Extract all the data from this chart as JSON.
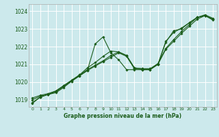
{
  "background_color": "#cce9ec",
  "grid_color": "#ffffff",
  "line_color": "#1a5c1a",
  "marker_color": "#1a5c1a",
  "xlabel": "Graphe pression niveau de la mer (hPa)",
  "xlabel_color": "#1a5c1a",
  "ylabel_ticks": [
    1019,
    1020,
    1021,
    1022,
    1023,
    1024
  ],
  "xticks": [
    0,
    1,
    2,
    3,
    4,
    5,
    6,
    7,
    8,
    9,
    10,
    11,
    12,
    13,
    14,
    15,
    16,
    17,
    18,
    19,
    20,
    21,
    22,
    23
  ],
  "xlim": [
    -0.5,
    23.5
  ],
  "ylim": [
    1018.6,
    1024.4
  ],
  "series": [
    [
      1018.8,
      1019.15,
      1019.3,
      1019.45,
      1019.75,
      1020.05,
      1020.35,
      1020.65,
      1020.9,
      1021.15,
      1021.4,
      1021.65,
      1021.45,
      1020.75,
      1020.7,
      1020.7,
      1021.0,
      1021.85,
      1022.3,
      1022.75,
      1023.15,
      1023.55,
      1023.75,
      1023.55
    ],
    [
      1019.1,
      1019.25,
      1019.35,
      1019.5,
      1019.8,
      1020.1,
      1020.4,
      1020.7,
      1020.95,
      1021.2,
      1021.5,
      1021.7,
      1021.5,
      1020.8,
      1020.75,
      1020.75,
      1021.05,
      1021.9,
      1022.4,
      1022.85,
      1023.25,
      1023.65,
      1023.8,
      1023.6
    ],
    [
      1019.0,
      1019.2,
      1019.3,
      1019.5,
      1019.8,
      1020.1,
      1020.4,
      1020.8,
      1021.1,
      1021.45,
      1021.75,
      1021.7,
      1021.5,
      1020.8,
      1020.75,
      1020.75,
      1021.0,
      1022.3,
      1022.8,
      1023.05,
      1023.35,
      1023.65,
      1023.75,
      1023.55
    ],
    [
      1018.85,
      1019.15,
      1019.3,
      1019.4,
      1019.7,
      1020.05,
      1020.35,
      1020.65,
      1022.15,
      1022.55,
      1021.65,
      1021.25,
      1020.7,
      1020.7,
      1020.7,
      1020.7,
      1021.0,
      1022.25,
      1022.9,
      1023.0,
      1023.35,
      1023.65,
      1023.75,
      1023.5
    ]
  ]
}
